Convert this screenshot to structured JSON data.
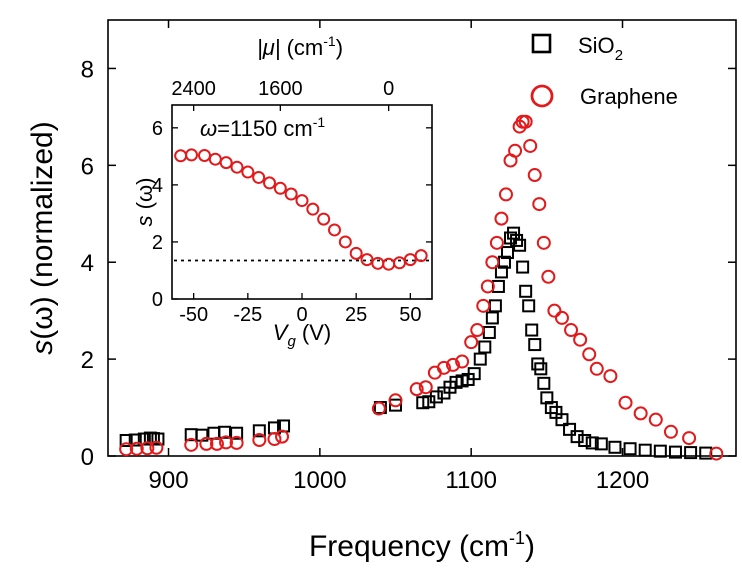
{
  "chart_data": [
    {
      "type": "scatter",
      "xlabel": {
        "main": "Frequency (cm",
        "sup": "-1",
        "tail": ")"
      },
      "ylabel": {
        "italic": "s",
        "rest": "(ω)  (normalized)"
      },
      "xlim": [
        860,
        1275
      ],
      "ylim": [
        0,
        9
      ],
      "xticks": [
        900,
        1000,
        1100,
        1200
      ],
      "yticks": [
        0,
        2,
        4,
        6,
        8
      ],
      "legend_position": "top-right",
      "series": [
        {
          "name": {
            "main": "SiO",
            "sub": "2"
          },
          "marker": "square",
          "color": "#000000",
          "x": [
            872,
            878,
            884,
            888,
            890,
            893,
            915,
            922,
            930,
            937,
            945,
            960,
            970,
            976,
            1040,
            1050,
            1068,
            1072,
            1077,
            1082,
            1086,
            1090,
            1094,
            1098,
            1102,
            1106,
            1109,
            1112,
            1114,
            1116,
            1118,
            1120,
            1122,
            1124,
            1126,
            1128,
            1130,
            1132,
            1134,
            1136,
            1138,
            1140,
            1142,
            1144,
            1146,
            1148,
            1150,
            1153,
            1156,
            1160,
            1165,
            1170,
            1175,
            1180,
            1186,
            1195,
            1205,
            1215,
            1225,
            1235,
            1245,
            1255
          ],
          "y": [
            0.32,
            0.33,
            0.35,
            0.37,
            0.36,
            0.35,
            0.44,
            0.43,
            0.47,
            0.49,
            0.47,
            0.52,
            0.58,
            0.62,
            1.0,
            1.05,
            1.1,
            1.12,
            1.22,
            1.3,
            1.42,
            1.52,
            1.55,
            1.58,
            1.7,
            2.0,
            2.25,
            2.55,
            2.85,
            3.1,
            3.5,
            3.8,
            4.0,
            4.2,
            4.5,
            4.6,
            4.45,
            4.35,
            3.9,
            3.4,
            3.1,
            2.6,
            2.3,
            1.9,
            1.8,
            1.5,
            1.2,
            1.0,
            0.9,
            0.75,
            0.55,
            0.4,
            0.32,
            0.27,
            0.25,
            0.18,
            0.15,
            0.12,
            0.1,
            0.08,
            0.07,
            0.06
          ]
        },
        {
          "name": "Graphene",
          "marker": "circle",
          "color": "#e31a1c",
          "x": [
            872,
            879,
            886,
            892,
            915,
            925,
            932,
            938,
            945,
            960,
            970,
            975,
            1039,
            1050,
            1064,
            1070,
            1076,
            1082,
            1088,
            1094,
            1100,
            1104,
            1108,
            1111,
            1114,
            1117,
            1120,
            1123,
            1126,
            1129,
            1132,
            1134,
            1136,
            1139,
            1142,
            1145,
            1148,
            1151,
            1155,
            1160,
            1166,
            1172,
            1178,
            1183,
            1192,
            1202,
            1212,
            1222,
            1232,
            1244,
            1262
          ],
          "y": [
            0.14,
            0.15,
            0.16,
            0.17,
            0.23,
            0.25,
            0.25,
            0.28,
            0.27,
            0.33,
            0.35,
            0.4,
            0.98,
            1.15,
            1.38,
            1.42,
            1.72,
            1.82,
            1.88,
            1.95,
            2.35,
            2.6,
            3.1,
            3.5,
            4.0,
            4.4,
            4.9,
            5.4,
            6.1,
            6.3,
            6.8,
            6.9,
            6.9,
            6.4,
            5.8,
            5.2,
            4.4,
            3.7,
            3.0,
            2.85,
            2.6,
            2.4,
            2.1,
            1.8,
            1.65,
            1.1,
            0.88,
            0.75,
            0.5,
            0.37,
            0.05
          ]
        }
      ]
    },
    {
      "type": "scatter",
      "annotation": {
        "italic": "ω",
        "rest": "=1150 cm",
        "sup": "-1"
      },
      "xlabel": {
        "italic": "V",
        "sub": "g",
        "rest": " (V)"
      },
      "ylabel": {
        "italic": "s",
        "rest": " (ω)"
      },
      "top_axis_label": {
        "bars": "|μ|",
        "rest": " (cm",
        "sup": "-1",
        "tail": ")"
      },
      "top_axis_ticks": [
        {
          "label": "2400",
          "at_vg": -50
        },
        {
          "label": "1600",
          "at_vg": -10
        },
        {
          "label": "0",
          "at_vg": 40
        }
      ],
      "xlim": [
        -60,
        60
      ],
      "ylim": [
        0,
        6.8
      ],
      "xticks": [
        -50,
        -25,
        0,
        25,
        50
      ],
      "yticks": [
        0,
        2,
        4,
        6
      ],
      "reference_line": {
        "y": 1.35,
        "style": "dotted"
      },
      "series": [
        {
          "marker": "circle",
          "color": "#e31a1c",
          "x": [
            -56,
            -51,
            -45,
            -40,
            -35,
            -30,
            -25,
            -20,
            -15,
            -10,
            -5,
            0,
            5,
            10,
            15,
            20,
            25,
            30,
            35,
            40,
            45,
            50,
            55
          ],
          "y": [
            5.02,
            5.05,
            5.03,
            4.9,
            4.78,
            4.62,
            4.45,
            4.26,
            4.07,
            3.88,
            3.68,
            3.45,
            3.15,
            2.8,
            2.42,
            2.0,
            1.6,
            1.38,
            1.25,
            1.22,
            1.27,
            1.38,
            1.52
          ]
        }
      ]
    }
  ]
}
